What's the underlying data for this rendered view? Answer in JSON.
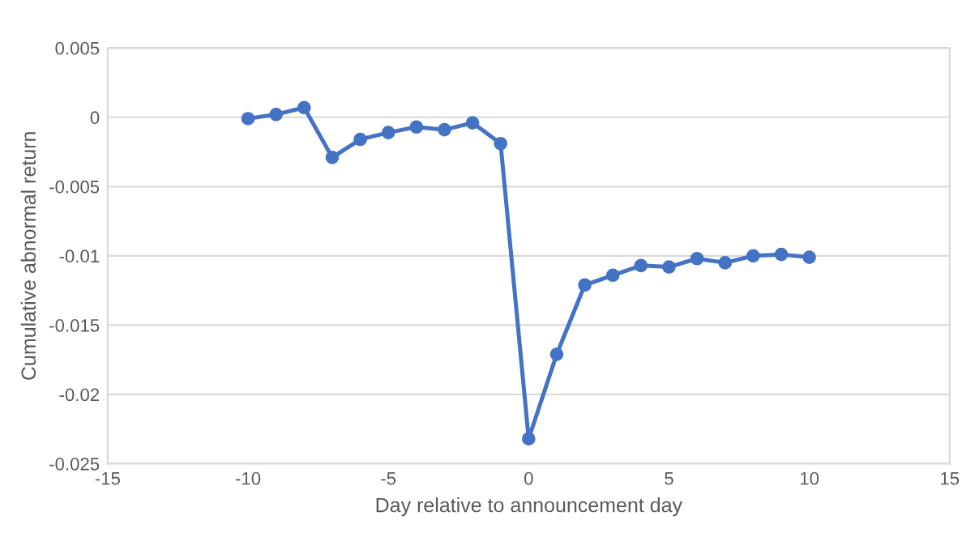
{
  "chart_data": {
    "type": "line",
    "xlabel": "Day relative to announcement day",
    "ylabel": "Cumulative abnormal return",
    "x": [
      -10,
      -9,
      -8,
      -7,
      -6,
      -5,
      -4,
      -3,
      -2,
      -1,
      0,
      1,
      2,
      3,
      4,
      5,
      6,
      7,
      8,
      9,
      10
    ],
    "series": [
      {
        "color": "#4472c4",
        "values": [
          -0.0001,
          0.0002,
          0.0007,
          -0.0029,
          -0.0016,
          -0.0011,
          -0.0007,
          -0.0009,
          -0.0004,
          -0.0019,
          -0.0232,
          -0.0171,
          -0.0121,
          -0.0114,
          -0.0107,
          -0.0108,
          -0.0102,
          -0.0105,
          -0.01,
          -0.0099,
          -0.0101
        ]
      }
    ],
    "xlim": [
      -15,
      15
    ],
    "xticks": [
      -15,
      -10,
      -5,
      0,
      5,
      10,
      15
    ],
    "ylim": [
      -0.025,
      0.005
    ],
    "yticks": [
      -0.025,
      -0.02,
      -0.015,
      -0.01,
      -0.005,
      0,
      0.005
    ],
    "grid": "y",
    "marker": "circle",
    "line_style": "solid",
    "legend": false
  }
}
